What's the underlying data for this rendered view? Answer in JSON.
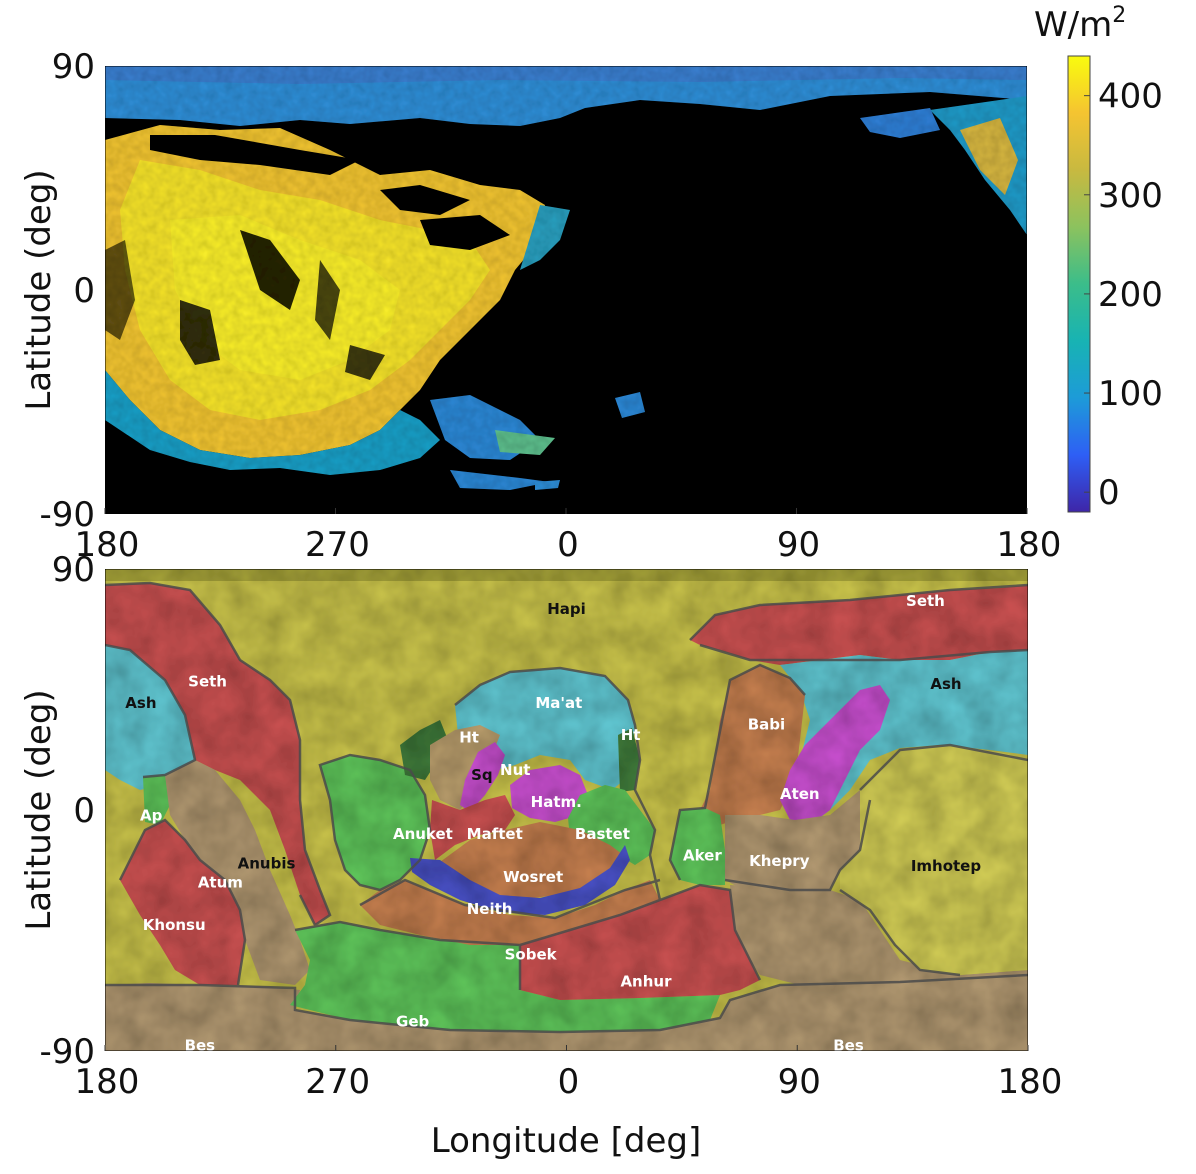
{
  "chart_data": [
    {
      "type": "heatmap",
      "description_role": "solar flux map",
      "ylabel": "Latitude (deg)",
      "xlabel": "",
      "x_ticks": [
        "180",
        "270",
        "0",
        "90",
        "180"
      ],
      "y_ticks": [
        "90",
        "0",
        "-90"
      ],
      "xlim": [
        180,
        540
      ],
      "ylim": [
        -90,
        90
      ],
      "colorbar": {
        "unit": "W/m",
        "unit_superscript": "2",
        "ticks": [
          "400",
          "300",
          "200",
          "100",
          "0"
        ],
        "tick_values": [
          400,
          300,
          200,
          100,
          0
        ],
        "range": [
          -20,
          440
        ],
        "colormap": [
          "#3e26a8",
          "#2e5ff5",
          "#1d9bd8",
          "#18b3b3",
          "#3bbd8a",
          "#8cc25e",
          "#c8b940",
          "#f5c431",
          "#f9fb0e"
        ]
      },
      "no_flux_color": "#000000"
    },
    {
      "type": "map",
      "ylabel": "Latitude (deg)",
      "xlabel": "Longitude [deg]",
      "x_ticks": [
        "180",
        "270",
        "0",
        "90",
        "180"
      ],
      "y_ticks": [
        "90",
        "0",
        "-90"
      ],
      "regions": [
        {
          "name": "Hapi",
          "lon": 0,
          "lat": 75,
          "color": "#c8c24a",
          "label_color": "#111111"
        },
        {
          "name": "Seth",
          "lon": 220,
          "lat": 48,
          "color": "#c85050",
          "label_color": "#ffffff"
        },
        {
          "name": "Seth",
          "lon": 140,
          "lat": 78,
          "color": "#c85050",
          "label_color": "#ffffff"
        },
        {
          "name": "Ash",
          "lon": 194,
          "lat": 40,
          "color": "#5fc4cf",
          "label_color": "#111111"
        },
        {
          "name": "Ash",
          "lon": 148,
          "lat": 47,
          "color": "#5fc4cf",
          "label_color": "#111111"
        },
        {
          "name": "Ma'at",
          "lon": 357,
          "lat": 40,
          "color": "#5fc4cf",
          "label_color": "#ffffff"
        },
        {
          "name": "Ht",
          "lon": 322,
          "lat": 27,
          "color": "#3f7a3a",
          "label_color": "#ffffff"
        },
        {
          "name": "Ht",
          "lon": 25,
          "lat": 28,
          "color": "#3f7a3a",
          "label_color": "#ffffff"
        },
        {
          "name": "Sq",
          "lon": 327,
          "lat": 13,
          "color": "#b59a6a",
          "label_color": "#111111"
        },
        {
          "name": "Nut",
          "lon": 340,
          "lat": 15,
          "color": "#c84fcf",
          "label_color": "#ffffff"
        },
        {
          "name": "Hatm.",
          "lon": 356,
          "lat": 3,
          "color": "#c84fcf",
          "label_color": "#ffffff"
        },
        {
          "name": "Babi",
          "lon": 78,
          "lat": 32,
          "color": "#c47e4e",
          "label_color": "#ffffff"
        },
        {
          "name": "Aten",
          "lon": 91,
          "lat": 6,
          "color": "#c84fcf",
          "label_color": "#ffffff"
        },
        {
          "name": "Ap",
          "lon": 198,
          "lat": -2,
          "color": "#5ec45a",
          "label_color": "#ffffff"
        },
        {
          "name": "Anuket",
          "lon": 304,
          "lat": -9,
          "color": "#5ec45a",
          "label_color": "#ffffff"
        },
        {
          "name": "Maftet",
          "lon": 332,
          "lat": -9,
          "color": "#c85050",
          "label_color": "#ffffff"
        },
        {
          "name": "Bastet",
          "lon": 14,
          "lat": -9,
          "color": "#5ec45a",
          "label_color": "#ffffff"
        },
        {
          "name": "Aker",
          "lon": 53,
          "lat": -17,
          "color": "#5ec45a",
          "label_color": "#ffffff"
        },
        {
          "name": "Khepry",
          "lon": 83,
          "lat": -19,
          "color": "#b09770",
          "label_color": "#ffffff"
        },
        {
          "name": "Imhotep",
          "lon": 148,
          "lat": -21,
          "color": "#c8c24a",
          "label_color": "#111111"
        },
        {
          "name": "Anubis",
          "lon": 243,
          "lat": -20,
          "color": "#c8c24a",
          "label_color": "#111111"
        },
        {
          "name": "Atum",
          "lon": 225,
          "lat": -27,
          "color": "#b09770",
          "label_color": "#ffffff"
        },
        {
          "name": "Wosret",
          "lon": 347,
          "lat": -25,
          "color": "#c47e4e",
          "label_color": "#ffffff"
        },
        {
          "name": "Neith",
          "lon": 330,
          "lat": -37,
          "color": "#4a52c8",
          "label_color": "#ffffff"
        },
        {
          "name": "Khonsu",
          "lon": 207,
          "lat": -43,
          "color": "#c85050",
          "label_color": "#ffffff"
        },
        {
          "name": "Sobek",
          "lon": 346,
          "lat": -54,
          "color": "#c47e4e",
          "label_color": "#ffffff"
        },
        {
          "name": "Anhur",
          "lon": 31,
          "lat": -64,
          "color": "#c85050",
          "label_color": "#ffffff"
        },
        {
          "name": "Geb",
          "lon": 300,
          "lat": -79,
          "color": "#5ec45a",
          "label_color": "#ffffff"
        },
        {
          "name": "Bes",
          "lon": 217,
          "lat": -88,
          "color": "#b09770",
          "label_color": "#ffffff"
        },
        {
          "name": "Bes",
          "lon": 110,
          "lat": -88,
          "color": "#b09770",
          "label_color": "#ffffff"
        }
      ]
    }
  ]
}
